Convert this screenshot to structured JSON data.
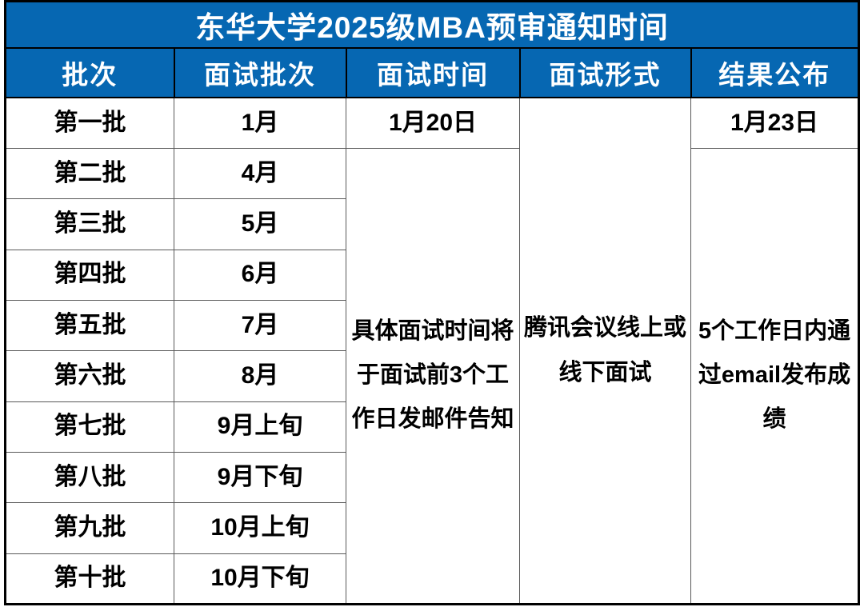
{
  "table": {
    "title": "东华大学2025级MBA预审通知时间",
    "headers": [
      "批次",
      "面试批次",
      "面试时间",
      "面试形式",
      "结果公布"
    ],
    "rows": [
      {
        "batch": "第一批",
        "interview_batch": "1月"
      },
      {
        "batch": "第二批",
        "interview_batch": "4月"
      },
      {
        "batch": "第三批",
        "interview_batch": "5月"
      },
      {
        "batch": "第四批",
        "interview_batch": "6月"
      },
      {
        "batch": "第五批",
        "interview_batch": "7月"
      },
      {
        "batch": "第六批",
        "interview_batch": "8月"
      },
      {
        "batch": "第七批",
        "interview_batch": "9月上旬"
      },
      {
        "batch": "第八批",
        "interview_batch": "9月下旬"
      },
      {
        "batch": "第九批",
        "interview_batch": "10月上旬"
      },
      {
        "batch": "第十批",
        "interview_batch": "10月下旬"
      }
    ],
    "first_row": {
      "interview_time": "1月20日",
      "result": "1月23日"
    },
    "merged": {
      "interview_time": "具体面试时间将于面试前3个工作日发邮件告知",
      "interview_format": "腾讯会议线上或线下面试",
      "result": "5个工作日内通过email发布成绩"
    }
  },
  "colors": {
    "header_blue": "#0667B2",
    "header_text": "#ffffff",
    "body_text": "#000000",
    "outer_border": "#000000",
    "inner_border": "#595959",
    "page_bg": "#ffffff"
  }
}
